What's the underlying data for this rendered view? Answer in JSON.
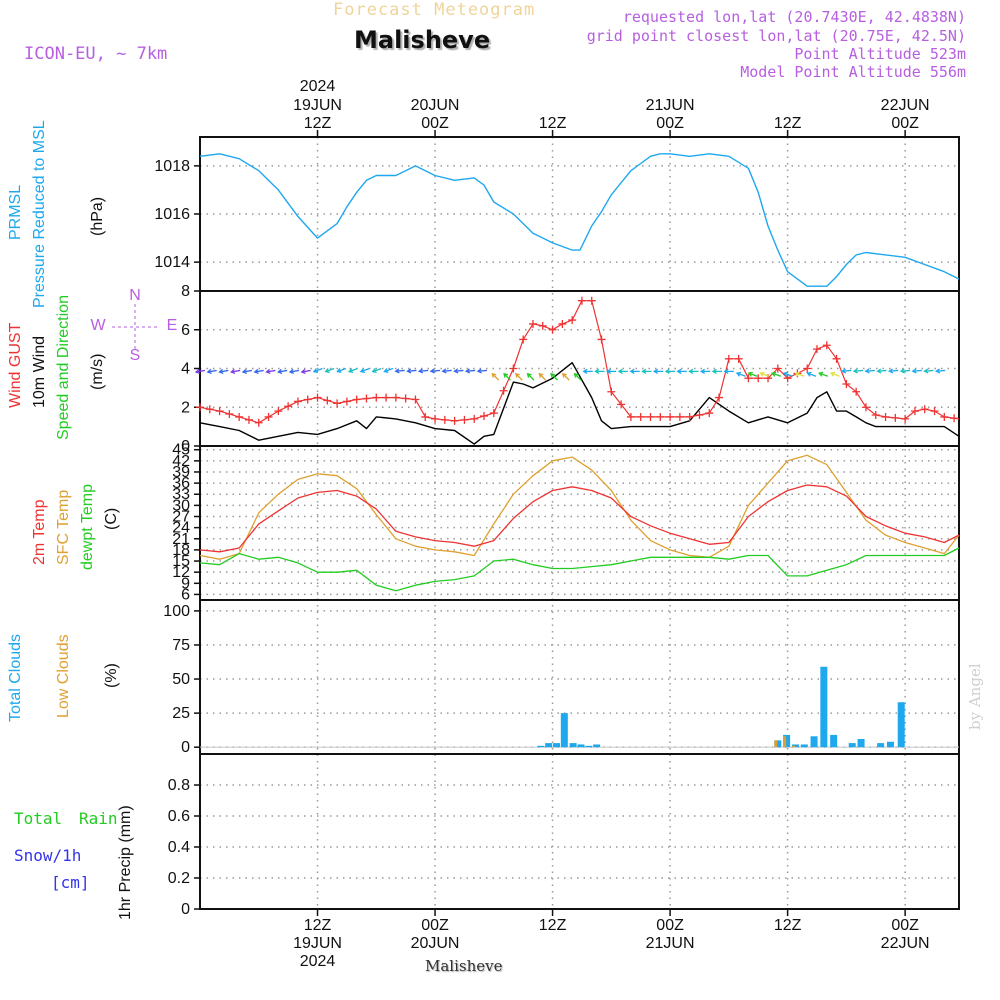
{
  "header": {
    "top_title": "Forecast Meteogram",
    "location": "Malisheve",
    "model": "ICON-EU, ~ 7km",
    "requested": "requested lon,lat (20.7430E, 42.4838N)",
    "grid_point": "grid point closest lon,lat (20.75E, 42.5N)",
    "point_altitude": "Point Altitude 523m",
    "model_altitude": "Model Point Altitude 556m",
    "top_year": "2024",
    "bottom_year": "2024",
    "footer_location": "Malisheve",
    "credit": "by Angel"
  },
  "colors": {
    "pressure": "#1ea8ee",
    "gust": "#ee3333",
    "wind": "#000000",
    "arrow_green": "#22cc22",
    "temp2m": "#ee3333",
    "sfc": "#e0a030",
    "dewpt": "#22cc22",
    "total_cloud": "#1ea8ee",
    "low_cloud": "#e0a030",
    "rain": "#22cc22",
    "snow": "#3333ee",
    "purple": "#b75fe0",
    "grid": "#9a9a9a"
  },
  "chart_data": {
    "type": "line",
    "time_axis": {
      "unit": "hours from 19JUN 00Z",
      "range": [
        0,
        77.5
      ],
      "top_labels": [
        {
          "t": 12,
          "day": "19JUN",
          "hour": "12Z"
        },
        {
          "t": 24,
          "day": "20JUN",
          "hour": "00Z"
        },
        {
          "t": 36,
          "day": "",
          "hour": "12Z"
        },
        {
          "t": 48,
          "day": "21JUN",
          "hour": "00Z"
        },
        {
          "t": 60,
          "day": "",
          "hour": "12Z"
        },
        {
          "t": 72,
          "day": "22JUN",
          "hour": "00Z"
        }
      ],
      "bottom_labels": [
        {
          "t": 12,
          "hour": "12Z",
          "day": "19JUN"
        },
        {
          "t": 24,
          "hour": "00Z",
          "day": "20JUN"
        },
        {
          "t": 36,
          "hour": "12Z",
          "day": ""
        },
        {
          "t": 48,
          "hour": "00Z",
          "day": "21JUN"
        },
        {
          "t": 60,
          "hour": "12Z",
          "day": ""
        },
        {
          "t": 72,
          "hour": "00Z",
          "day": "22JUN"
        }
      ]
    },
    "panels": {
      "pressure": {
        "title": "PRMSL",
        "subtitle": "Pressure Reduced to MSL",
        "unit": "(hPa)",
        "ylim": [
          1012.8,
          1019.2
        ],
        "ticks": [
          "1014",
          "1016",
          "1018"
        ],
        "tick_values": [
          1014,
          1016,
          1018
        ],
        "series": [
          {
            "name": "PRMSL",
            "t": [
              0,
              2,
              4,
              6,
              8,
              10,
              12,
              14,
              15,
              16,
              17,
              18,
              20,
              22,
              24,
              26,
              28,
              29,
              30,
              32,
              34,
              36,
              38,
              38.8,
              40,
              41,
              42,
              44,
              46,
              47,
              48,
              50,
              52,
              54,
              56,
              57,
              58,
              59,
              60,
              62,
              64,
              65,
              66,
              67,
              68,
              70,
              72,
              74,
              76,
              77.5
            ],
            "values": [
              1018.4,
              1018.5,
              1018.3,
              1017.8,
              1017.0,
              1015.9,
              1015.0,
              1015.6,
              1016.3,
              1016.9,
              1017.4,
              1017.6,
              1017.6,
              1018.0,
              1017.6,
              1017.4,
              1017.5,
              1017.2,
              1016.5,
              1016.0,
              1015.2,
              1014.8,
              1014.5,
              1014.5,
              1015.5,
              1016.1,
              1016.8,
              1017.8,
              1018.4,
              1018.5,
              1018.5,
              1018.4,
              1018.5,
              1018.4,
              1017.9,
              1016.9,
              1015.5,
              1014.5,
              1013.6,
              1013.0,
              1013.0,
              1013.4,
              1013.9,
              1014.3,
              1014.4,
              1014.3,
              1014.2,
              1013.9,
              1013.6,
              1013.3
            ]
          }
        ]
      },
      "wind": {
        "labels": [
          "Wind GUST",
          "10m Wind",
          "Speed and Direction"
        ],
        "unit": "(m/s)",
        "compass": {
          "n": "N",
          "e": "E",
          "s": "S",
          "w": "W"
        },
        "ylim": [
          0,
          8
        ],
        "ticks": [
          "0",
          "2",
          "4",
          "6",
          "8"
        ],
        "tick_values": [
          0,
          2,
          4,
          6,
          8
        ],
        "series": [
          {
            "name": "Wind GUST",
            "t": [
              0,
              2,
              4,
              6,
              8,
              10,
              12,
              14,
              16,
              18,
              20,
              22,
              23,
              24,
              26,
              28,
              30,
              32,
              33,
              34,
              35,
              36,
              37,
              38,
              39,
              40,
              41,
              42,
              44,
              46,
              48,
              50,
              52,
              53,
              54,
              55,
              56,
              57,
              58,
              59,
              60,
              62,
              63,
              64,
              65,
              66,
              67,
              68,
              69,
              70,
              72,
              73,
              74,
              75,
              76,
              77.5
            ],
            "values": [
              2.0,
              1.8,
              1.5,
              1.2,
              1.8,
              2.3,
              2.5,
              2.2,
              2.4,
              2.5,
              2.5,
              2.4,
              1.5,
              1.4,
              1.3,
              1.4,
              1.7,
              4.0,
              5.5,
              6.3,
              6.2,
              6.0,
              6.3,
              6.5,
              7.5,
              7.5,
              5.5,
              2.8,
              1.5,
              1.5,
              1.5,
              1.5,
              1.7,
              2.5,
              4.5,
              4.5,
              3.5,
              3.5,
              3.5,
              4.0,
              3.5,
              4.0,
              5.0,
              5.2,
              4.5,
              3.2,
              2.8,
              2.0,
              1.6,
              1.5,
              1.4,
              1.8,
              1.9,
              1.8,
              1.5,
              1.4
            ]
          },
          {
            "name": "10m Wind",
            "t": [
              0,
              2,
              4,
              6,
              8,
              10,
              12,
              14,
              16,
              17,
              18,
              20,
              22,
              24,
              26,
              28,
              29,
              30,
              32,
              33,
              34,
              36,
              38,
              40,
              41,
              42,
              44,
              46,
              48,
              50,
              52,
              54,
              56,
              58,
              60,
              62,
              63,
              64,
              65,
              66,
              67,
              68,
              69,
              70,
              72,
              74,
              76,
              77.5
            ],
            "values": [
              1.2,
              1.0,
              0.8,
              0.3,
              0.5,
              0.7,
              0.6,
              0.9,
              1.3,
              0.9,
              1.5,
              1.4,
              1.2,
              0.9,
              0.8,
              0.1,
              0.5,
              0.6,
              3.3,
              3.2,
              3.0,
              3.5,
              4.3,
              2.5,
              1.3,
              0.9,
              1.0,
              1.0,
              1.0,
              1.3,
              2.5,
              1.8,
              1.2,
              1.5,
              1.2,
              1.7,
              2.5,
              2.8,
              1.8,
              1.8,
              1.5,
              1.2,
              1.0,
              1.0,
              1.0,
              1.0,
              1.0,
              0.5
            ]
          }
        ]
      },
      "temperature": {
        "labels": [
          "2m Temp",
          "SFC Temp",
          "dewpt Temp"
        ],
        "unit": "(C)",
        "ylim": [
          4.5,
          46
        ],
        "ticks": [
          "6",
          "9",
          "12",
          "15",
          "18",
          "21",
          "24",
          "27",
          "30",
          "33",
          "36",
          "39",
          "42",
          "45"
        ],
        "tick_values": [
          6,
          9,
          12,
          15,
          18,
          21,
          24,
          27,
          30,
          33,
          36,
          39,
          42,
          45
        ],
        "series": [
          {
            "name": "2m Temp",
            "t": [
              0,
              2,
              4,
              6,
              8,
              10,
              12,
              14,
              16,
              18,
              20,
              22,
              24,
              26,
              28,
              30,
              32,
              34,
              36,
              38,
              40,
              42,
              44,
              46,
              48,
              50,
              52,
              54,
              56,
              58,
              60,
              62,
              64,
              66,
              68,
              70,
              72,
              74,
              76,
              77.5
            ],
            "values": [
              18,
              17.5,
              18.5,
              25,
              28.5,
              32,
              33.5,
              34,
              32.5,
              29,
              23,
              21.5,
              20.5,
              20,
              19,
              20.5,
              26.5,
              31,
              34,
              35,
              34,
              32,
              27,
              24.5,
              22.5,
              21,
              19.5,
              20,
              27,
              31,
              34,
              35.5,
              35,
              32.5,
              27,
              24.5,
              22.5,
              21.5,
              20,
              22
            ]
          },
          {
            "name": "SFC Temp",
            "t": [
              0,
              2,
              4,
              6,
              8,
              10,
              12,
              14,
              16,
              18,
              20,
              22,
              24,
              26,
              28,
              30,
              32,
              34,
              36,
              38,
              40,
              42,
              44,
              46,
              48,
              50,
              52,
              54,
              56,
              58,
              60,
              62,
              64,
              66,
              68,
              70,
              72,
              74,
              76,
              77.5
            ],
            "values": [
              16.5,
              15.5,
              17,
              28,
              33,
              37,
              38.5,
              38,
              34.5,
              27.5,
              21,
              19,
              18,
              17.5,
              16.5,
              25,
              33,
              38,
              42,
              43,
              39.5,
              34,
              26,
              20.5,
              18,
              16.5,
              16,
              19,
              30,
              36,
              42,
              43.5,
              41,
              33.5,
              26,
              22,
              20,
              18.5,
              17,
              22
            ]
          },
          {
            "name": "dewpt Temp",
            "t": [
              0,
              2,
              4,
              6,
              8,
              10,
              12,
              14,
              16,
              18,
              20,
              22,
              24,
              26,
              28,
              30,
              32,
              34,
              36,
              38,
              40,
              42,
              44,
              46,
              48,
              50,
              52,
              54,
              56,
              58,
              60,
              62,
              64,
              66,
              68,
              70,
              72,
              74,
              76,
              77.5
            ],
            "values": [
              14.5,
              14,
              17,
              15.5,
              16,
              14.5,
              12,
              12,
              12.5,
              8.5,
              7,
              8.5,
              9.5,
              10,
              11,
              15,
              15.5,
              14,
              13,
              13,
              13.5,
              14,
              15,
              16,
              16,
              16,
              16,
              15.5,
              16.5,
              16.5,
              11,
              11,
              12.5,
              14,
              16.5,
              16.5,
              16.5,
              16.5,
              16.5,
              18.5
            ]
          }
        ]
      },
      "clouds": {
        "labels": [
          "Total Clouds",
          "Low Clouds"
        ],
        "unit": "(%)",
        "ylim": [
          -5,
          108
        ],
        "ticks": [
          "0",
          "25",
          "50",
          "75",
          "100"
        ],
        "tick_values": [
          0,
          25,
          50,
          75,
          100
        ],
        "bars": [
          {
            "t": 34.8,
            "total": 1,
            "low": 0
          },
          {
            "t": 35.6,
            "total": 3,
            "low": 0
          },
          {
            "t": 36.4,
            "total": 3,
            "low": 0
          },
          {
            "t": 37.2,
            "total": 25,
            "low": 0
          },
          {
            "t": 38.1,
            "total": 3,
            "low": 0
          },
          {
            "t": 38.9,
            "total": 2,
            "low": 0
          },
          {
            "t": 39.7,
            "total": 1,
            "low": 0
          },
          {
            "t": 40.5,
            "total": 2,
            "low": 0
          },
          {
            "t": 59.0,
            "total": 5,
            "low": 5
          },
          {
            "t": 59.9,
            "total": 9,
            "low": 8
          },
          {
            "t": 60.8,
            "total": 2,
            "low": 1
          },
          {
            "t": 61.7,
            "total": 2,
            "low": 0
          },
          {
            "t": 62.7,
            "total": 8,
            "low": 0
          },
          {
            "t": 63.7,
            "total": 59,
            "low": 0
          },
          {
            "t": 64.7,
            "total": 9,
            "low": 0
          },
          {
            "t": 66.6,
            "total": 3,
            "low": 0
          },
          {
            "t": 67.5,
            "total": 6,
            "low": 0
          },
          {
            "t": 69.5,
            "total": 3,
            "low": 0
          },
          {
            "t": 70.5,
            "total": 4,
            "low": 0
          },
          {
            "t": 71.6,
            "total": 33,
            "low": 0
          }
        ]
      },
      "precip": {
        "labels": [
          "Total",
          "Rain",
          "Snow/1h",
          "[cm]"
        ],
        "unit": "1hr Precip (mm)",
        "ylim": [
          0,
          1.0
        ],
        "ticks": [
          "0",
          "0.2",
          "0.4",
          "0.6",
          "0.8"
        ],
        "tick_values": [
          0,
          0.2,
          0.4,
          0.6,
          0.8
        ],
        "series": [
          {
            "name": "Total Rain",
            "values": [
              0
            ]
          }
        ]
      }
    }
  }
}
